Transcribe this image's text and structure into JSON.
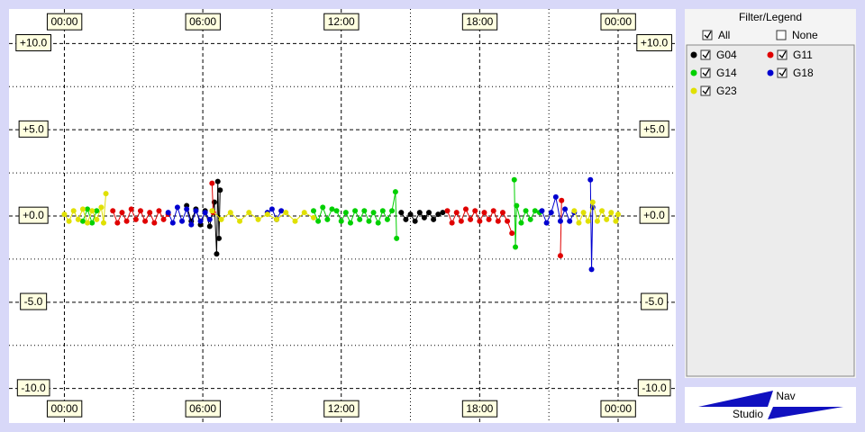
{
  "chart_data": {
    "type": "scatter",
    "xlim": [
      -2.4,
      26.5
    ],
    "ylim": [
      -12,
      12
    ],
    "xticks": [
      {
        "value": 0,
        "label": "00:00"
      },
      {
        "value": 6,
        "label": "06:00"
      },
      {
        "value": 12,
        "label": "12:00"
      },
      {
        "value": 18,
        "label": "18:00"
      },
      {
        "value": 24,
        "label": "00:00"
      }
    ],
    "xminorticks": [
      3,
      9,
      15,
      21
    ],
    "yticks": [
      {
        "value": 10,
        "label": "+10.0"
      },
      {
        "value": 5,
        "label": "+5.0"
      },
      {
        "value": 0,
        "label": "+0.0"
      },
      {
        "value": -5,
        "label": "-5.0"
      },
      {
        "value": -10,
        "label": "-10.0"
      }
    ],
    "yminorticks": [
      7.5,
      2.5,
      -2.5,
      -7.5
    ],
    "grid": true,
    "series": [
      {
        "name": "G04",
        "color": "#000000",
        "x": [
          5.3,
          5.5,
          5.7,
          5.9,
          6.1,
          6.3,
          6.5,
          6.6,
          6.65,
          6.7,
          6.75,
          null,
          14.6,
          14.8,
          15.0,
          15.2,
          15.4,
          15.6,
          15.8,
          16.0,
          16.2,
          16.4
        ],
        "values": [
          0.6,
          -0.3,
          0.4,
          -0.5,
          0.3,
          -0.6,
          0.8,
          -2.2,
          2.0,
          -1.3,
          1.5,
          null,
          0.2,
          -0.2,
          0.1,
          -0.3,
          0.2,
          -0.1,
          0.2,
          -0.2,
          0.1,
          0.2
        ]
      },
      {
        "name": "G11",
        "color": "#e00000",
        "x": [
          2.1,
          2.3,
          2.5,
          2.7,
          2.9,
          3.1,
          3.3,
          3.5,
          3.7,
          3.9,
          4.1,
          4.3,
          4.5,
          null,
          6.4,
          6.45,
          null,
          16.6,
          16.8,
          17.0,
          17.2,
          17.4,
          17.6,
          17.8,
          18.0,
          18.2,
          18.4,
          18.6,
          18.8,
          19.0,
          19.2,
          19.4,
          null,
          21.5,
          21.55
        ],
        "values": [
          0.3,
          -0.4,
          0.2,
          -0.3,
          0.4,
          -0.2,
          0.3,
          -0.3,
          0.2,
          -0.4,
          0.3,
          -0.2,
          0.1,
          null,
          1.9,
          0.2,
          null,
          0.3,
          -0.4,
          0.2,
          -0.3,
          0.4,
          -0.2,
          0.3,
          -0.3,
          0.2,
          -0.2,
          0.3,
          -0.3,
          0.2,
          -0.3,
          -1.0,
          null,
          -2.3,
          0.9
        ]
      },
      {
        "name": "G14",
        "color": "#00d000",
        "x": [
          0.8,
          1.0,
          1.2,
          1.4,
          null,
          10.8,
          11.0,
          11.2,
          11.4,
          11.6,
          11.8,
          12.0,
          12.2,
          12.4,
          12.6,
          12.8,
          13.0,
          13.2,
          13.4,
          13.6,
          13.8,
          14.0,
          14.2,
          14.35,
          14.4,
          null,
          19.5,
          19.55,
          19.6,
          19.8,
          20.0,
          20.2,
          20.4,
          20.6
        ],
        "values": [
          -0.3,
          0.4,
          -0.4,
          0.3,
          null,
          0.3,
          -0.3,
          0.5,
          -0.2,
          0.4,
          0.3,
          -0.3,
          0.2,
          -0.4,
          0.3,
          -0.2,
          0.3,
          -0.3,
          0.2,
          -0.4,
          0.3,
          -0.2,
          0.3,
          1.4,
          -1.3,
          null,
          2.1,
          -1.8,
          0.6,
          -0.4,
          0.3,
          -0.2,
          0.3,
          0.2
        ]
      },
      {
        "name": "G18",
        "color": "#0000d0",
        "x": [
          4.5,
          4.7,
          4.9,
          5.1,
          5.3,
          5.5,
          5.7,
          5.9,
          6.1,
          6.3,
          null,
          8.8,
          9.0,
          9.2,
          9.4,
          null,
          20.7,
          20.9,
          21.1,
          21.3,
          21.5,
          21.7,
          21.9,
          22.1,
          null,
          22.8,
          22.85,
          22.9
        ],
        "values": [
          0.2,
          -0.4,
          0.5,
          -0.3,
          0.4,
          -0.5,
          0.3,
          -0.3,
          0.2,
          -0.2,
          null,
          0.2,
          0.4,
          -0.2,
          0.3,
          null,
          0.3,
          -0.4,
          0.2,
          1.1,
          -0.3,
          0.4,
          -0.3,
          0.2,
          null,
          2.1,
          -3.1,
          0.5
        ]
      },
      {
        "name": "G23",
        "color": "#e0e000",
        "x": [
          0.0,
          0.2,
          0.4,
          0.6,
          0.8,
          1.0,
          1.2,
          1.4,
          1.6,
          1.7,
          1.8,
          null,
          6.4,
          6.8,
          7.2,
          7.6,
          8.0,
          8.4,
          8.8,
          9.2,
          9.6,
          10.0,
          10.4,
          10.8,
          null,
          22.1,
          22.3,
          22.5,
          22.7,
          22.9,
          23.1,
          23.3,
          23.5,
          23.7,
          23.9,
          24.0
        ],
        "values": [
          0.1,
          -0.3,
          0.3,
          -0.2,
          0.4,
          -0.4,
          0.3,
          -0.2,
          0.5,
          -0.4,
          1.3,
          null,
          0.3,
          -0.2,
          0.2,
          -0.3,
          0.2,
          -0.2,
          0.1,
          -0.2,
          0.2,
          -0.3,
          0.2,
          -0.1,
          null,
          0.3,
          -0.4,
          0.2,
          -0.3,
          0.8,
          -0.3,
          0.3,
          -0.2,
          0.2,
          -0.3,
          0.1
        ]
      }
    ]
  },
  "filter_panel": {
    "title": "Filter/Legend",
    "all": "All",
    "none": "None"
  },
  "logo": {
    "nav": "Nav",
    "studio": "Studio"
  }
}
